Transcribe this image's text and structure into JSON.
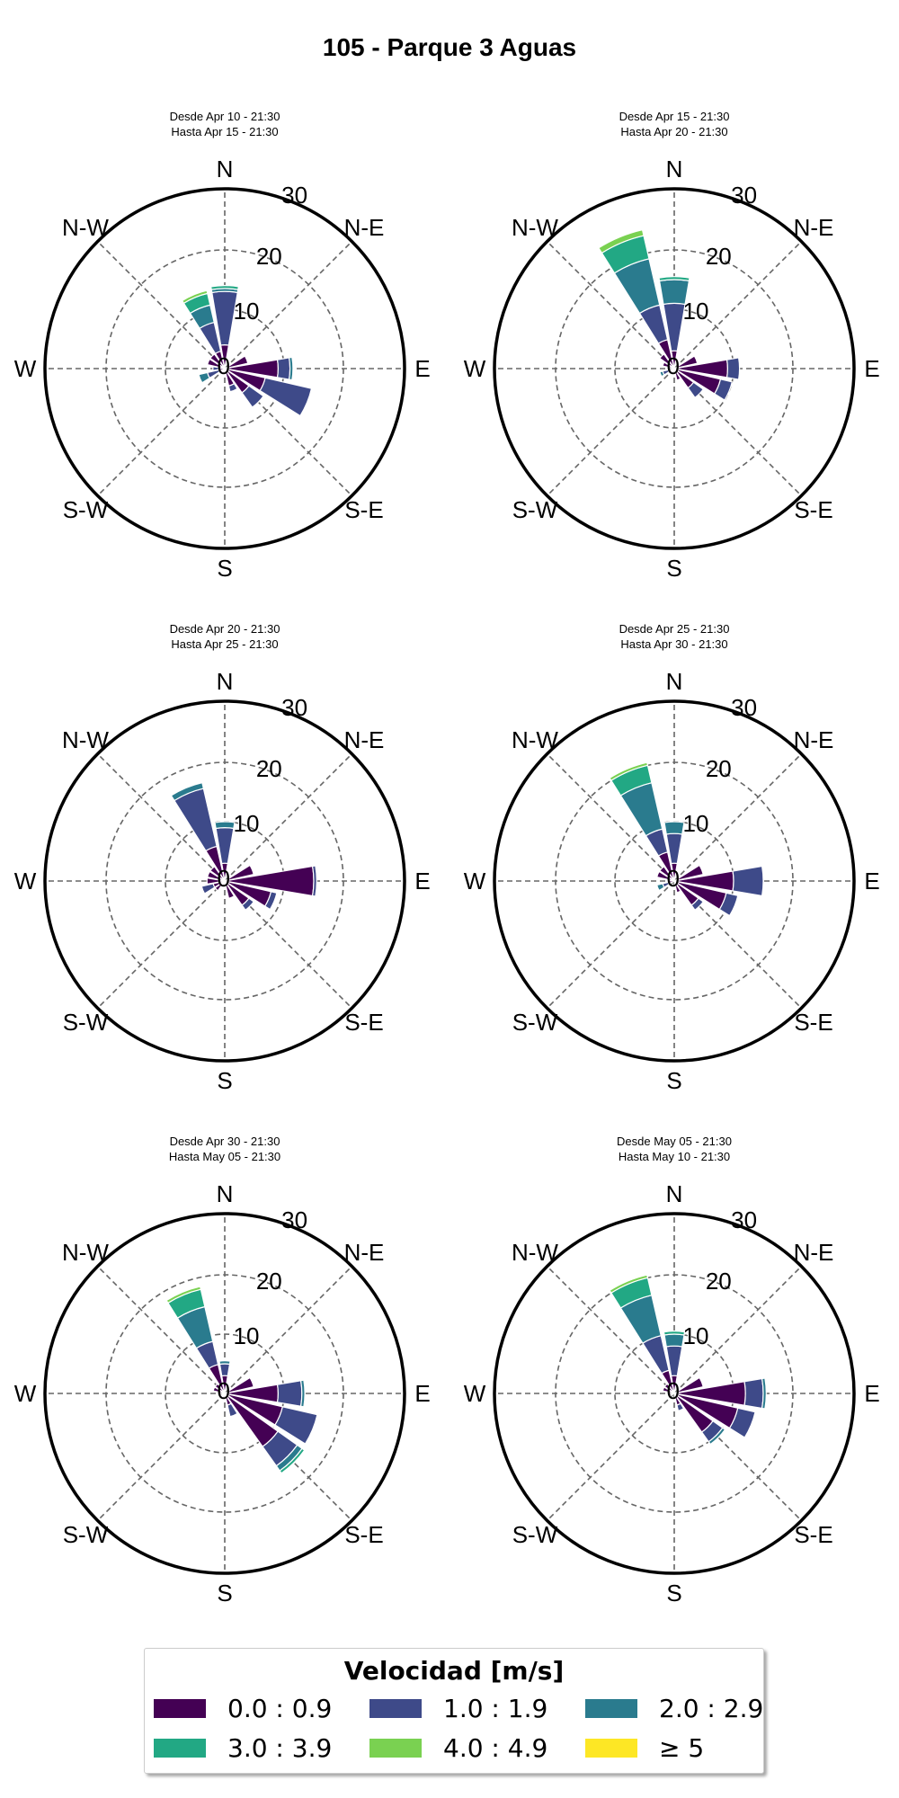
{
  "title": "105 - Parque 3 Aguas",
  "direction_labels": [
    "N",
    "N-E",
    "E",
    "S-E",
    "S",
    "S-W",
    "W",
    "N-W"
  ],
  "radial_ticks": [
    0,
    10,
    20,
    30
  ],
  "colors": {
    "0.0 : 0.9": "#440154",
    "1.0 : 1.9": "#3e4a89",
    "2.0 : 2.9": "#2a7b8e",
    "3.0 : 3.9": "#22a884",
    "4.0 : 4.9": "#7ad151",
    "≥ 5": "#fde725"
  },
  "legend": {
    "title": "Velocidad [m/s]",
    "items": [
      {
        "label": "0.0 : 0.9",
        "color": "#440154"
      },
      {
        "label": "1.0 : 1.9",
        "color": "#3e4a89"
      },
      {
        "label": "2.0 : 2.9",
        "color": "#2a7b8e"
      },
      {
        "label": "3.0 : 3.9",
        "color": "#22a884"
      },
      {
        "label": "4.0 : 4.9",
        "color": "#7ad151"
      },
      {
        "label": "≥ 5",
        "color": "#fde725"
      }
    ]
  },
  "chart_data": [
    {
      "type": "windrose",
      "subtitle": [
        "Desde Apr 10 - 21:30",
        "Hasta Apr 15 - 21:30"
      ],
      "rmax": 30,
      "bins": [
        "0.0 : 0.9",
        "1.0 : 1.9",
        "2.0 : 2.9",
        "3.0 : 3.9",
        "4.0 : 4.9",
        "≥ 5"
      ],
      "sectors": [
        {
          "dir": 0,
          "values": [
            4,
            9,
            0.5,
            0.5,
            0,
            0
          ]
        },
        {
          "dir": 337.5,
          "values": [
            3,
            5,
            3,
            2,
            0.5,
            0
          ]
        },
        {
          "dir": 90,
          "values": [
            9,
            2,
            0.5,
            0,
            0,
            0
          ]
        },
        {
          "dir": 112.5,
          "values": [
            7,
            8,
            0,
            0,
            0,
            0
          ]
        },
        {
          "dir": 135,
          "values": [
            5,
            3,
            0,
            0,
            0,
            0
          ]
        },
        {
          "dir": 67.5,
          "values": [
            4,
            0,
            0,
            0,
            0,
            0
          ]
        },
        {
          "dir": 157.5,
          "values": [
            3,
            1,
            0,
            0,
            0,
            0
          ]
        },
        {
          "dir": 247.5,
          "values": [
            1,
            2,
            1.5,
            0,
            0,
            0
          ]
        },
        {
          "dir": 270,
          "values": [
            1,
            1,
            0,
            0,
            0,
            0
          ]
        },
        {
          "dir": 292.5,
          "values": [
            3,
            0,
            0,
            0,
            0,
            0
          ]
        },
        {
          "dir": 315,
          "values": [
            3,
            0,
            0,
            0,
            0,
            0
          ]
        },
        {
          "dir": 202.5,
          "values": [
            1,
            0,
            0,
            0,
            0,
            0
          ]
        },
        {
          "dir": 225,
          "values": [
            1,
            0,
            0,
            0,
            0,
            0
          ]
        }
      ]
    },
    {
      "type": "windrose",
      "subtitle": [
        "Desde Apr 15 - 21:30",
        "Hasta Apr 20 - 21:30"
      ],
      "rmax": 30,
      "bins": [
        "0.0 : 0.9",
        "1.0 : 1.9",
        "2.0 : 2.9",
        "3.0 : 3.9",
        "4.0 : 4.9",
        "≥ 5"
      ],
      "sectors": [
        {
          "dir": 0,
          "values": [
            3,
            8,
            4,
            0.5,
            0,
            0
          ]
        },
        {
          "dir": 337.5,
          "values": [
            5,
            6,
            8,
            4,
            1,
            0
          ]
        },
        {
          "dir": 315,
          "values": [
            3,
            0,
            0,
            0,
            0,
            0
          ]
        },
        {
          "dir": 90,
          "values": [
            9,
            2,
            0,
            0,
            0,
            0
          ]
        },
        {
          "dir": 112.5,
          "values": [
            8,
            2,
            0,
            0,
            0,
            0
          ]
        },
        {
          "dir": 135,
          "values": [
            4,
            2,
            0,
            0,
            0,
            0
          ]
        },
        {
          "dir": 67.5,
          "values": [
            4,
            0,
            0,
            0,
            0,
            0
          ]
        },
        {
          "dir": 157.5,
          "values": [
            2,
            0,
            0,
            0,
            0,
            0
          ]
        },
        {
          "dir": 247.5,
          "values": [
            1,
            1,
            0.5,
            0,
            0,
            0
          ]
        },
        {
          "dir": 292.5,
          "values": [
            2,
            0,
            0,
            0,
            0,
            0
          ]
        },
        {
          "dir": 225,
          "values": [
            1,
            0,
            0,
            0,
            0,
            0
          ]
        },
        {
          "dir": 202.5,
          "values": [
            1,
            0,
            0,
            0,
            0,
            0
          ]
        }
      ]
    },
    {
      "type": "windrose",
      "subtitle": [
        "Desde Apr 20 - 21:30",
        "Hasta Apr 25 - 21:30"
      ],
      "rmax": 30,
      "bins": [
        "0.0 : 0.9",
        "1.0 : 1.9",
        "2.0 : 2.9",
        "3.0 : 3.9",
        "4.0 : 4.9",
        "≥ 5"
      ],
      "sectors": [
        {
          "dir": 0,
          "values": [
            3,
            6,
            1,
            0,
            0,
            0
          ]
        },
        {
          "dir": 337.5,
          "values": [
            6,
            10,
            1,
            0,
            0,
            0
          ]
        },
        {
          "dir": 90,
          "values": [
            15,
            0.5,
            0,
            0,
            0,
            0
          ]
        },
        {
          "dir": 112.5,
          "values": [
            8,
            1,
            0,
            0,
            0,
            0
          ]
        },
        {
          "dir": 135,
          "values": [
            5,
            1,
            0,
            0,
            0,
            0
          ]
        },
        {
          "dir": 67.5,
          "values": [
            5,
            0,
            0,
            0,
            0,
            0
          ]
        },
        {
          "dir": 157.5,
          "values": [
            3,
            0,
            0,
            0,
            0,
            0
          ]
        },
        {
          "dir": 247.5,
          "values": [
            2,
            2,
            0,
            0,
            0,
            0
          ]
        },
        {
          "dir": 270,
          "values": [
            3,
            0,
            0,
            0,
            0,
            0
          ]
        },
        {
          "dir": 292.5,
          "values": [
            3,
            0,
            0,
            0,
            0,
            0
          ]
        },
        {
          "dir": 315,
          "values": [
            3,
            0,
            0,
            0,
            0,
            0
          ]
        },
        {
          "dir": 225,
          "values": [
            2,
            0,
            0,
            0,
            0,
            0
          ]
        },
        {
          "dir": 202.5,
          "values": [
            1,
            0,
            0,
            0,
            0,
            0
          ]
        }
      ]
    },
    {
      "type": "windrose",
      "subtitle": [
        "Desde Apr 25 - 21:30",
        "Hasta Apr 30 - 21:30"
      ],
      "rmax": 30,
      "bins": [
        "0.0 : 0.9",
        "1.0 : 1.9",
        "2.0 : 2.9",
        "3.0 : 3.9",
        "4.0 : 4.9",
        "≥ 5"
      ],
      "sectors": [
        {
          "dir": 0,
          "values": [
            3,
            5,
            2,
            0,
            0,
            0
          ]
        },
        {
          "dir": 337.5,
          "values": [
            5,
            4,
            8,
            3,
            0.5,
            0
          ]
        },
        {
          "dir": 90,
          "values": [
            10,
            5,
            0,
            0,
            0,
            0
          ]
        },
        {
          "dir": 112.5,
          "values": [
            9,
            2,
            0,
            0,
            0,
            0
          ]
        },
        {
          "dir": 135,
          "values": [
            5,
            1,
            0,
            0,
            0,
            0
          ]
        },
        {
          "dir": 67.5,
          "values": [
            5,
            0,
            0,
            0,
            0,
            0
          ]
        },
        {
          "dir": 157.5,
          "values": [
            2,
            0,
            0,
            0,
            0,
            0
          ]
        },
        {
          "dir": 247.5,
          "values": [
            1,
            1,
            1,
            0,
            0,
            0
          ]
        },
        {
          "dir": 292.5,
          "values": [
            3,
            0,
            0,
            0,
            0,
            0
          ]
        },
        {
          "dir": 315,
          "values": [
            3,
            0,
            0,
            0,
            0,
            0
          ]
        },
        {
          "dir": 270,
          "values": [
            1,
            0,
            0,
            0,
            0,
            0
          ]
        }
      ]
    },
    {
      "type": "windrose",
      "subtitle": [
        "Desde Apr 30 - 21:30",
        "Hasta May 05 - 21:30"
      ],
      "rmax": 30,
      "bins": [
        "0.0 : 0.9",
        "1.0 : 1.9",
        "2.0 : 2.9",
        "3.0 : 3.9",
        "4.0 : 4.9",
        "≥ 5"
      ],
      "sectors": [
        {
          "dir": 0,
          "values": [
            3,
            2,
            0.5,
            0,
            0,
            0
          ]
        },
        {
          "dir": 337.5,
          "values": [
            5,
            4,
            6,
            3,
            0.5,
            0
          ]
        },
        {
          "dir": 90,
          "values": [
            9,
            4,
            0.5,
            0,
            0,
            0
          ]
        },
        {
          "dir": 112.5,
          "values": [
            10,
            6,
            0,
            0,
            0,
            0
          ]
        },
        {
          "dir": 135,
          "values": [
            11,
            4,
            1,
            0.5,
            0,
            0
          ]
        },
        {
          "dir": 67.5,
          "values": [
            5,
            0,
            0,
            0,
            0,
            0
          ]
        },
        {
          "dir": 157.5,
          "values": [
            2,
            2,
            0,
            0,
            0,
            0
          ]
        },
        {
          "dir": 315,
          "values": [
            2,
            0,
            0,
            0,
            0,
            0
          ]
        },
        {
          "dir": 292.5,
          "values": [
            2,
            0,
            0,
            0,
            0,
            0
          ]
        },
        {
          "dir": 247.5,
          "values": [
            1,
            0,
            0,
            0,
            0,
            0
          ]
        },
        {
          "dir": 202.5,
          "values": [
            1,
            0,
            0,
            0,
            0,
            0
          ]
        },
        {
          "dir": 225,
          "values": [
            1,
            0,
            0,
            0,
            0,
            0
          ]
        }
      ]
    },
    {
      "type": "windrose",
      "subtitle": [
        "Desde May 05 - 21:30",
        "Hasta May 10 - 21:30"
      ],
      "rmax": 30,
      "bins": [
        "0.0 : 0.9",
        "1.0 : 1.9",
        "2.0 : 2.9",
        "3.0 : 3.9",
        "4.0 : 4.9",
        "≥ 5"
      ],
      "sectors": [
        {
          "dir": 0,
          "values": [
            3,
            5,
            2,
            0.5,
            0,
            0
          ]
        },
        {
          "dir": 337.5,
          "values": [
            4,
            6,
            7,
            3,
            0.5,
            0
          ]
        },
        {
          "dir": 90,
          "values": [
            12,
            3,
            0.5,
            0,
            0,
            0
          ]
        },
        {
          "dir": 112.5,
          "values": [
            11,
            3,
            0,
            0,
            0,
            0
          ]
        },
        {
          "dir": 135,
          "values": [
            8,
            2,
            0.5,
            0,
            0,
            0
          ]
        },
        {
          "dir": 67.5,
          "values": [
            5,
            0,
            0,
            0,
            0,
            0
          ]
        },
        {
          "dir": 157.5,
          "values": [
            2,
            1,
            0,
            0,
            0,
            0
          ]
        },
        {
          "dir": 315,
          "values": [
            2,
            0,
            0,
            0,
            0,
            0
          ]
        },
        {
          "dir": 292.5,
          "values": [
            2,
            0,
            0,
            0,
            0,
            0
          ]
        },
        {
          "dir": 247.5,
          "values": [
            1,
            0,
            0,
            0,
            0,
            0
          ]
        }
      ]
    }
  ]
}
